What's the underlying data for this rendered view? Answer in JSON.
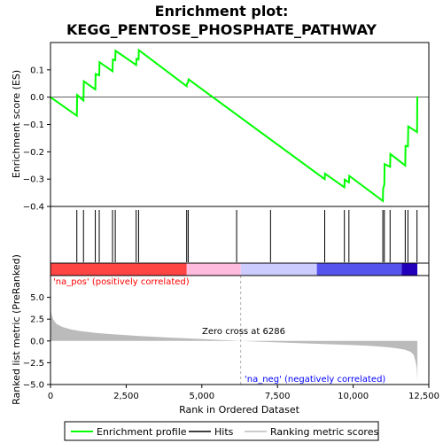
{
  "chart_data": {
    "type": "line",
    "title_line1": "Enrichment plot:",
    "title_line2": "KEGG_PENTOSE_PHOSPHATE_PATHWAY",
    "top_panel": {
      "ylabel": "Enrichment score (ES)",
      "ylim": [
        -0.4,
        0.2
      ],
      "yticks": [
        0.1,
        0.0,
        -0.1,
        -0.2,
        -0.3,
        -0.4
      ],
      "ytick_labels": [
        "0.1",
        "0.0",
        "−0.1",
        "−0.2",
        "−0.3",
        "−0.4"
      ],
      "series": {
        "name": "Enrichment profile",
        "color": "#00ff00",
        "x": [
          0,
          870,
          880,
          1090,
          1100,
          1480,
          1490,
          1610,
          1620,
          2050,
          2060,
          2140,
          2150,
          2830,
          2840,
          2910,
          2920,
          4500,
          4510,
          4550,
          4560,
          9060,
          9070,
          9710,
          9720,
          9860,
          9870,
          10980,
          10990,
          11030,
          11040,
          11220,
          11230,
          11720,
          11730,
          11810,
          11820,
          12110,
          12120
        ],
        "y": [
          0.0,
          -0.068,
          0.008,
          -0.012,
          0.058,
          0.028,
          0.085,
          0.08,
          0.128,
          0.095,
          0.138,
          0.135,
          0.17,
          0.118,
          0.14,
          0.138,
          0.172,
          0.04,
          0.05,
          0.055,
          0.065,
          -0.3,
          -0.28,
          -0.33,
          -0.302,
          -0.312,
          -0.288,
          -0.38,
          -0.335,
          -0.32,
          -0.245,
          -0.255,
          -0.208,
          -0.25,
          -0.178,
          -0.18,
          -0.107,
          -0.128,
          0.003
        ]
      }
    },
    "hits": {
      "name": "Hits",
      "x": [
        870,
        1090,
        1480,
        1610,
        2050,
        2140,
        2830,
        2910,
        4500,
        4550,
        6150,
        7270,
        9060,
        9710,
        9860,
        10980,
        11030,
        11220,
        11720,
        11810,
        12110
      ]
    },
    "color_bar": {
      "segments": [
        {
          "x0": 0,
          "x1": 4500,
          "color": "#ff4444"
        },
        {
          "x0": 4500,
          "x1": 6286,
          "color": "#ffbbdd"
        },
        {
          "x0": 6286,
          "x1": 8800,
          "color": "#ccccff"
        },
        {
          "x0": 8800,
          "x1": 11600,
          "color": "#5555ee"
        },
        {
          "x0": 11600,
          "x1": 12121,
          "color": "#2200bb"
        }
      ]
    },
    "bottom_panel": {
      "ylabel": "Ranked list metric (PreRanked)",
      "ylim": [
        -5.0,
        7.5
      ],
      "yticks": [
        5.0,
        2.5,
        0.0,
        -2.5,
        -5.0
      ],
      "ytick_labels": [
        "5.0",
        "2.5",
        "0.0",
        "−2.5",
        "−5.0"
      ],
      "xlabel": "Rank in Ordered Dataset",
      "xlim": [
        0,
        12500
      ],
      "xticks": [
        0,
        2500,
        5000,
        7500,
        10000,
        12500
      ],
      "xtick_labels": [
        "0",
        "2,500",
        "5,000",
        "7,500",
        "10,000",
        "12,500"
      ],
      "metric_series": {
        "name": "Ranking metric scores",
        "color": "#bbbbbb",
        "x": [
          0,
          20,
          50,
          100,
          200,
          400,
          700,
          1000,
          1500,
          2000,
          3000,
          4000,
          5000,
          6286,
          7000,
          8000,
          9000,
          10000,
          10500,
          11000,
          11400,
          11700,
          11900,
          12000,
          12050,
          12100,
          12121
        ],
        "y": [
          4.0,
          3.3,
          2.8,
          2.4,
          1.95,
          1.6,
          1.3,
          1.12,
          0.92,
          0.78,
          0.55,
          0.38,
          0.22,
          0.0,
          -0.1,
          -0.22,
          -0.35,
          -0.48,
          -0.56,
          -0.68,
          -0.82,
          -1.0,
          -1.25,
          -1.6,
          -2.2,
          -3.0,
          -4.6
        ]
      },
      "zero_cross_label": "Zero cross at 6286",
      "zero_cross_x": 6286,
      "pos_label": "'na_pos' (positively correlated)",
      "neg_label": "'na_neg' (negatively correlated)"
    },
    "legend": {
      "items": [
        {
          "label": "Enrichment profile",
          "color": "#00ff00"
        },
        {
          "label": "Hits",
          "color": "#000000"
        },
        {
          "label": "Ranking metric scores",
          "color": "#bbbbbb"
        }
      ]
    }
  }
}
